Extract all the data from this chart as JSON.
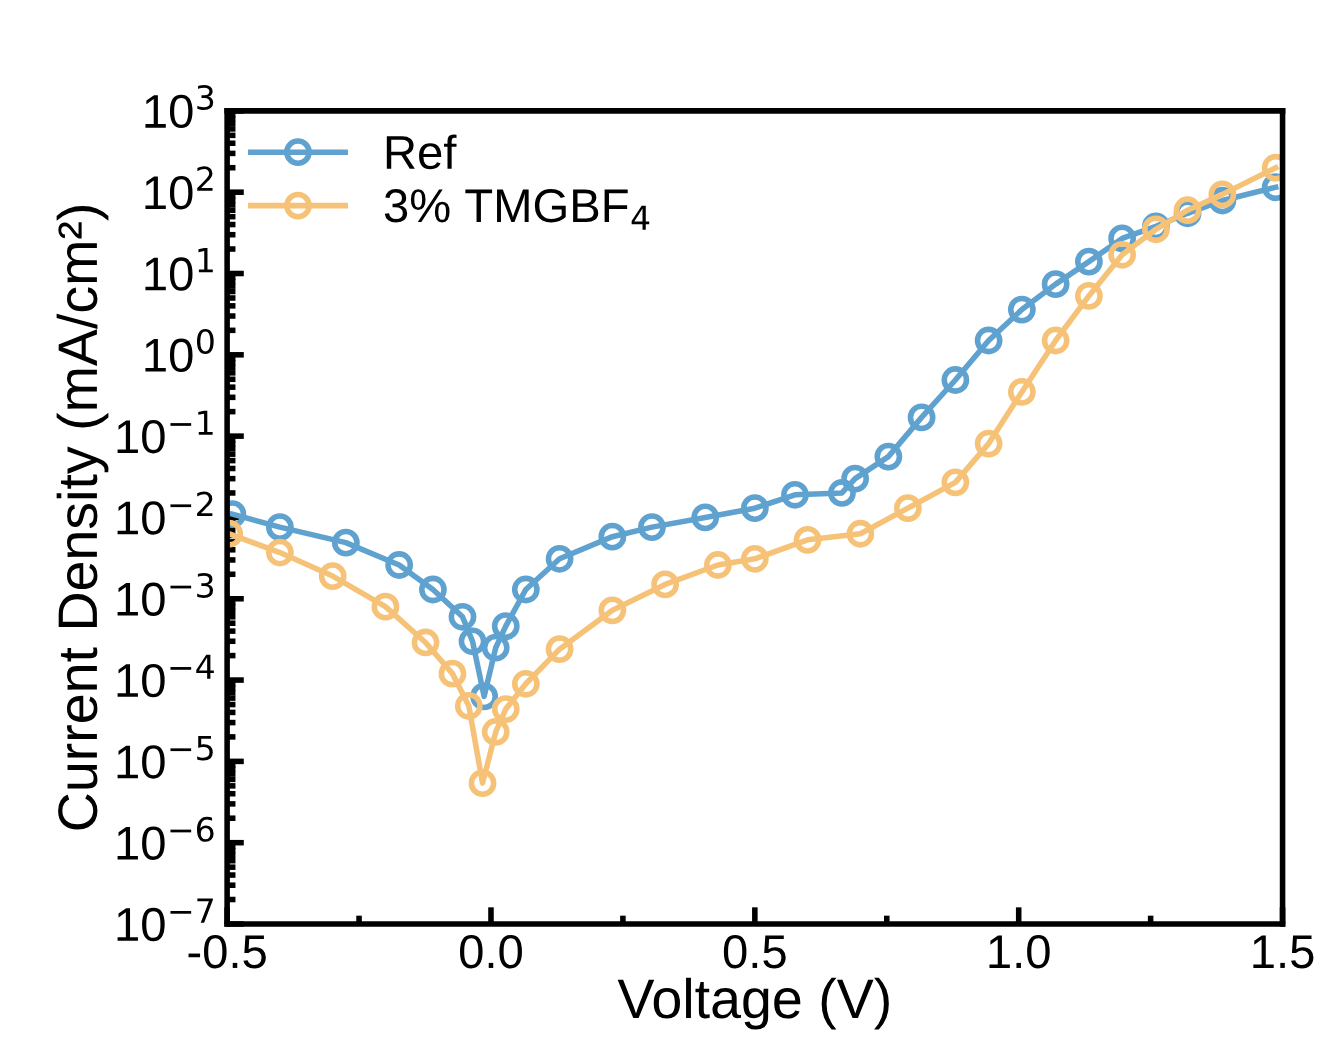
{
  "chart_data": {
    "type": "line",
    "xlabel": "Voltage (V)",
    "ylabel": "Current Density (mA/cm²)",
    "log": "y",
    "xlim": [
      -0.5,
      1.5
    ],
    "xticks": [
      {
        "value": -0.5,
        "label": "-0.5"
      },
      {
        "value": 0,
        "label": "0.0"
      },
      {
        "value": 0.5,
        "label": "0.5"
      },
      {
        "value": 1,
        "label": "1.0"
      },
      {
        "value": 1.5,
        "label": "1.5"
      }
    ],
    "ylim": [
      1e-07,
      1000
    ],
    "yticks": [
      {
        "value": 1e-07,
        "label": "10$^{−7}$"
      },
      {
        "value": 1e-06,
        "label": "10$^{−6}$"
      },
      {
        "value": 1e-05,
        "label": "10$^{−5}$"
      },
      {
        "value": 0.0001,
        "label": "10$^{−4}$"
      },
      {
        "value": 0.001,
        "label": "10$^{−3}$"
      },
      {
        "value": 0.01,
        "label": "10$^{−2}$"
      },
      {
        "value": 0.1,
        "label": "10$^{−1}$"
      },
      {
        "value": 1,
        "label": "10$^{0}$"
      },
      {
        "value": 10,
        "label": "10$^{1}$"
      },
      {
        "value": 100,
        "label": "10$^{2}$"
      },
      {
        "value": 1000,
        "label": "10$^{3}$"
      }
    ],
    "marker": "circle",
    "line_style": "solid",
    "legend": "top left",
    "grid": false,
    "series": [
      {
        "name": "Ref",
        "color": "#5fa2cf",
        "x": [
          -0.49,
          -0.4,
          -0.275,
          -0.174,
          -0.11,
          -0.054,
          -0.035,
          -0.013,
          0.009,
          0.028,
          0.066,
          0.13,
          0.23,
          0.305,
          0.406,
          0.5,
          0.576,
          0.665,
          0.69,
          0.753,
          0.816,
          0.88,
          0.943,
          1.006,
          1.07,
          1.133,
          1.196,
          1.26,
          1.32,
          1.386,
          1.487
        ],
        "values": [
          0.011,
          0.0076,
          0.0049,
          0.0026,
          0.0013,
          0.0006,
          0.0003,
          6.3e-05,
          0.00025,
          0.00046,
          0.0013,
          0.0031,
          0.0058,
          0.0076,
          0.01,
          0.013,
          0.019,
          0.02,
          0.03,
          0.056,
          0.17,
          0.49,
          1.5,
          3.6,
          7.4,
          14,
          27,
          38,
          55,
          79,
          115
        ]
      },
      {
        "name": "3% TMGBF$_{4}$",
        "color": "#f5c278",
        "x": [
          -0.496,
          -0.4,
          -0.3,
          -0.2,
          -0.124,
          -0.073,
          -0.042,
          -0.016,
          0.009,
          0.028,
          0.066,
          0.13,
          0.23,
          0.33,
          0.43,
          0.5,
          0.6,
          0.7,
          0.79,
          0.88,
          0.943,
          1.006,
          1.07,
          1.133,
          1.196,
          1.26,
          1.32,
          1.386,
          1.487
        ],
        "values": [
          0.0063,
          0.0037,
          0.0019,
          0.0008,
          0.00029,
          0.00012,
          4.8e-05,
          5.4e-06,
          2.3e-05,
          4.4e-05,
          9e-05,
          0.00024,
          0.00072,
          0.0015,
          0.0026,
          0.0031,
          0.0053,
          0.0063,
          0.013,
          0.027,
          0.081,
          0.35,
          1.5,
          5.3,
          17,
          35,
          60,
          94,
          200
        ]
      }
    ]
  }
}
